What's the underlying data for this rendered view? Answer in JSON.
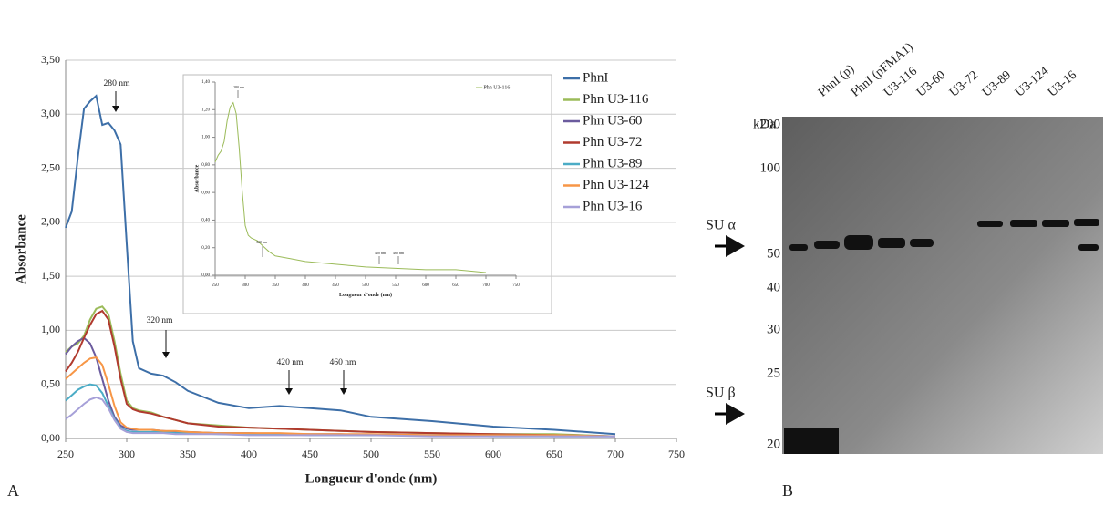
{
  "chart_data": [
    {
      "type": "line",
      "xlabel": "Longueur d'onde (nm)",
      "ylabel": "Absorbance",
      "x": [
        250,
        255,
        260,
        265,
        270,
        275,
        280,
        285,
        290,
        295,
        300,
        305,
        310,
        320,
        330,
        340,
        350,
        375,
        400,
        425,
        450,
        475,
        500,
        550,
        600,
        650,
        700
      ],
      "series": [
        {
          "name": "PhnI",
          "color": "#3d6fa8",
          "values": [
            1.95,
            2.1,
            2.6,
            3.05,
            3.12,
            3.17,
            2.9,
            2.92,
            2.85,
            2.72,
            1.8,
            0.9,
            0.65,
            0.6,
            0.58,
            0.52,
            0.44,
            0.33,
            0.28,
            0.3,
            0.28,
            0.26,
            0.2,
            0.16,
            0.11,
            0.08,
            0.04
          ]
        },
        {
          "name": "Phn U3-116",
          "color": "#9bbb59",
          "values": [
            0.8,
            0.85,
            0.88,
            0.95,
            1.1,
            1.2,
            1.22,
            1.15,
            0.9,
            0.6,
            0.35,
            0.28,
            0.26,
            0.24,
            0.2,
            0.17,
            0.14,
            0.12,
            0.1,
            0.09,
            0.08,
            0.07,
            0.06,
            0.05,
            0.04,
            0.04,
            0.02
          ]
        },
        {
          "name": "Phn U3-60",
          "color": "#6b5b9e",
          "values": [
            0.78,
            0.85,
            0.9,
            0.93,
            0.88,
            0.75,
            0.55,
            0.35,
            0.2,
            0.12,
            0.09,
            0.08,
            0.08,
            0.08,
            0.07,
            0.06,
            0.06,
            0.05,
            0.05,
            0.04,
            0.04,
            0.04,
            0.03,
            0.03,
            0.03,
            0.02,
            0.02
          ]
        },
        {
          "name": "Phn U3-72",
          "color": "#b03a2e",
          "values": [
            0.62,
            0.7,
            0.8,
            0.93,
            1.05,
            1.15,
            1.18,
            1.1,
            0.85,
            0.55,
            0.32,
            0.27,
            0.25,
            0.23,
            0.2,
            0.17,
            0.14,
            0.11,
            0.1,
            0.09,
            0.08,
            0.07,
            0.06,
            0.05,
            0.04,
            0.03,
            0.02
          ]
        },
        {
          "name": "Phn U3-89",
          "color": "#4bacc6",
          "values": [
            0.35,
            0.4,
            0.45,
            0.48,
            0.5,
            0.49,
            0.42,
            0.3,
            0.18,
            0.1,
            0.07,
            0.06,
            0.06,
            0.06,
            0.06,
            0.05,
            0.05,
            0.04,
            0.04,
            0.04,
            0.03,
            0.03,
            0.03,
            0.03,
            0.02,
            0.02,
            0.02
          ]
        },
        {
          "name": "Phn U3-124",
          "color": "#f79646",
          "values": [
            0.55,
            0.6,
            0.65,
            0.7,
            0.74,
            0.75,
            0.68,
            0.5,
            0.3,
            0.15,
            0.1,
            0.09,
            0.08,
            0.08,
            0.07,
            0.07,
            0.06,
            0.05,
            0.05,
            0.05,
            0.04,
            0.04,
            0.04,
            0.03,
            0.03,
            0.03,
            0.02
          ]
        },
        {
          "name": "Phn U3-16",
          "color": "#a6a0d8",
          "values": [
            0.18,
            0.22,
            0.27,
            0.32,
            0.36,
            0.38,
            0.36,
            0.28,
            0.17,
            0.09,
            0.06,
            0.05,
            0.05,
            0.05,
            0.05,
            0.04,
            0.04,
            0.04,
            0.03,
            0.03,
            0.03,
            0.03,
            0.03,
            0.02,
            0.02,
            0.02,
            0.02
          ]
        }
      ],
      "annotations": [
        "280 nm",
        "320 nm",
        "420 nm",
        "460 nm"
      ],
      "xlim": [
        250,
        750
      ],
      "xticks": [
        250,
        300,
        350,
        400,
        450,
        500,
        550,
        600,
        650,
        700,
        750
      ],
      "ylim": [
        0,
        3.5
      ],
      "yticks": [
        {
          "value": 0,
          "label": "0,00"
        },
        {
          "value": 0.5,
          "label": "0,50"
        },
        {
          "value": 1,
          "label": "1,00"
        },
        {
          "value": 1.5,
          "label": "1,50"
        },
        {
          "value": 2,
          "label": "2,00"
        },
        {
          "value": 2.5,
          "label": "2,50"
        },
        {
          "value": 3,
          "label": "3,00"
        },
        {
          "value": 3.5,
          "label": "3,50"
        }
      ],
      "grid": true,
      "legend": "right"
    },
    {
      "type": "line",
      "xlabel": "Longueur d'onde (nm)",
      "ylabel": "Absorbance",
      "x": [
        250,
        255,
        260,
        265,
        270,
        275,
        280,
        285,
        290,
        295,
        300,
        305,
        310,
        320,
        330,
        340,
        350,
        375,
        400,
        425,
        450,
        475,
        500,
        550,
        600,
        650,
        700
      ],
      "series": [
        {
          "name": "Phn U3-116",
          "color": "#9bbb59",
          "values": [
            0.82,
            0.87,
            0.9,
            0.97,
            1.12,
            1.22,
            1.25,
            1.17,
            0.92,
            0.61,
            0.36,
            0.29,
            0.27,
            0.25,
            0.21,
            0.17,
            0.14,
            0.12,
            0.1,
            0.09,
            0.08,
            0.07,
            0.06,
            0.05,
            0.04,
            0.04,
            0.02
          ]
        }
      ],
      "annotations": [
        "280 nm",
        "320 nm",
        "420 nm",
        "460 nm"
      ],
      "xlim": [
        250,
        750
      ],
      "xticks": [
        250,
        300,
        350,
        400,
        450,
        500,
        550,
        600,
        650,
        700,
        750
      ],
      "ylim": [
        0,
        1.4
      ],
      "yticks": [
        {
          "value": 0,
          "label": "0,00"
        },
        {
          "value": 0.2,
          "label": "0,20"
        },
        {
          "value": 0.4,
          "label": "0,40"
        },
        {
          "value": 0.6,
          "label": "0,60"
        },
        {
          "value": 0.8,
          "label": "0,80"
        },
        {
          "value": 1,
          "label": "1,00"
        },
        {
          "value": 1.2,
          "label": "1,20"
        },
        {
          "value": 1.4,
          "label": "1,40"
        }
      ],
      "grid": false,
      "legend": "top-right"
    }
  ],
  "gel": {
    "lanes": [
      "PhnI (p)",
      "PhnI (pFMA1)",
      "U3-116",
      "U3-60",
      "U3-72",
      "U3-89",
      "U3-124",
      "U3-16"
    ],
    "unit": "kDa",
    "markers": [
      200,
      100,
      50,
      40,
      30,
      25,
      20
    ],
    "su_alpha": "SU α",
    "su_beta": "SU β"
  },
  "panel_labels": [
    "A",
    "B"
  ]
}
